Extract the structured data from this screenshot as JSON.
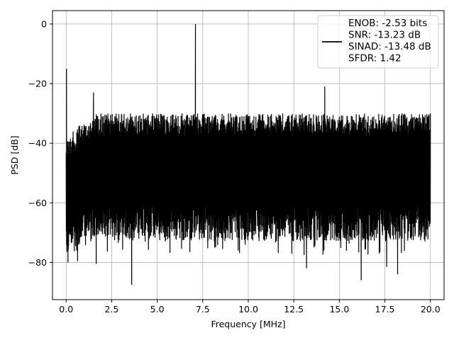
{
  "chart_data": {
    "type": "line",
    "title": "",
    "xlabel": "Frequency [MHz]",
    "ylabel": "PSD [dB]",
    "xlim": [
      -0.75,
      20.75
    ],
    "ylim": [
      -92.5,
      4.5
    ],
    "x_ticks": [
      0.0,
      2.5,
      5.0,
      7.5,
      10.0,
      12.5,
      15.0,
      17.5,
      20.0
    ],
    "x_tick_labels": [
      "0.0",
      "2.5",
      "5.0",
      "7.5",
      "10.0",
      "12.5",
      "15.0",
      "17.5",
      "20.0"
    ],
    "y_ticks": [
      0,
      -20,
      -40,
      -60,
      -80
    ],
    "y_tick_labels": [
      "0",
      "−20",
      "−40",
      "−60",
      "−80"
    ],
    "grid": true,
    "legend_placement": "upper-right",
    "series": [
      {
        "name": "",
        "color": "#000000",
        "legend_lines": [
          "ENOB: -2.53 bits",
          "SNR: -13.23 dB",
          "SINAD: -13.48 dB",
          "SFDR: 1.42"
        ],
        "noise_envelope": {
          "x_range": [
            0.0,
            20.0
          ],
          "upper_approx": -30,
          "lower_approx": -67,
          "start_upper": -38,
          "start_lower": -72
        },
        "spikes": [
          {
            "x": 0.02,
            "y": -15
          },
          {
            "x": 1.5,
            "y": -23
          },
          {
            "x": 7.1,
            "y": 0
          },
          {
            "x": 14.2,
            "y": -21
          },
          {
            "x": 0.1,
            "y": -80
          },
          {
            "x": 1.65,
            "y": -80.5
          },
          {
            "x": 3.6,
            "y": -87.5
          },
          {
            "x": 13.2,
            "y": -82
          },
          {
            "x": 16.2,
            "y": -86
          },
          {
            "x": 17.6,
            "y": -81.5
          },
          {
            "x": 18.2,
            "y": -84
          }
        ]
      }
    ]
  }
}
